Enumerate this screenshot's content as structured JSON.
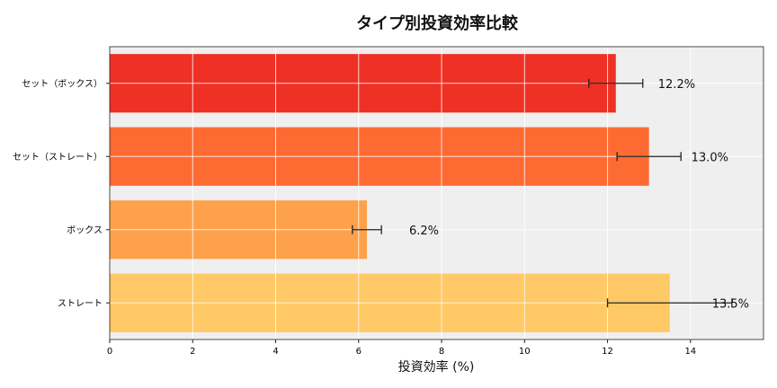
{
  "chart_data": {
    "type": "bar",
    "orientation": "horizontal",
    "title": "タイプ別投資効率比較",
    "xlabel": "投資効率 (%)",
    "ylabel": "",
    "categories": [
      "セット（ボックス）",
      "セット（ストレート）",
      "ボックス",
      "ストレート"
    ],
    "values": [
      12.2,
      13.0,
      6.2,
      13.5
    ],
    "errors": [
      0.65,
      0.77,
      0.35,
      1.5
    ],
    "data_labels": [
      "12.2%",
      "13.0%",
      "6.2%",
      "13.5%"
    ],
    "colors": [
      "#ee3124",
      "#fd6b33",
      "#fda14b",
      "#fec966"
    ],
    "xlim": [
      0,
      15.76
    ],
    "xticks": [
      0,
      2,
      4,
      6,
      8,
      10,
      12,
      14
    ],
    "grid": true,
    "background": "#efefef"
  }
}
